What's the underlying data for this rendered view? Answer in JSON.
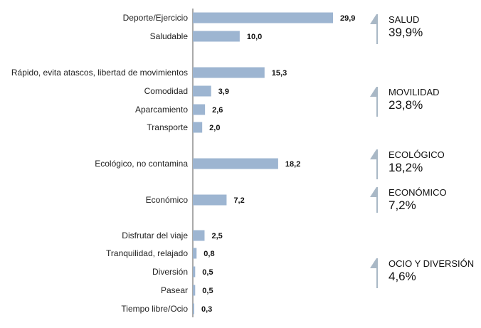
{
  "chart_data": {
    "type": "bar",
    "orientation": "horizontal",
    "categories": [
      "Deporte/Ejercicio",
      "Saludable",
      "Rápido, evita atascos, libertad de movimientos",
      "Comodidad",
      "Aparcamiento",
      "Transporte",
      "Ecológico, no contamina",
      "Económico",
      "Disfrutar del viaje",
      "Tranquilidad, relajado",
      "Diversión",
      "Pasear",
      "Tiempo libre/Ocio"
    ],
    "values": [
      29.9,
      10.0,
      15.3,
      3.9,
      2.6,
      2.0,
      18.2,
      7.2,
      2.5,
      0.8,
      0.5,
      0.5,
      0.3
    ],
    "value_labels": [
      "29,9",
      "10,0",
      "15,3",
      "3,9",
      "2,6",
      "2,0",
      "18,2",
      "7,2",
      "2,5",
      "0,8",
      "0,5",
      "0,5",
      "0,3"
    ],
    "bar_color": "#9db5d1",
    "groups": [
      {
        "name": "SALUD",
        "percent": "39,9%",
        "members": [
          0,
          1
        ]
      },
      {
        "name": "MOVILIDAD",
        "percent": "23,8%",
        "members": [
          2,
          3,
          4,
          5
        ]
      },
      {
        "name": "ECOLÓGICO",
        "percent": "18,2%",
        "members": [
          6
        ]
      },
      {
        "name": "ECONÓMICO",
        "percent": "7,2%",
        "members": [
          7
        ]
      },
      {
        "name": "OCIO Y DIVERSIÓN",
        "percent": "4,6%",
        "members": [
          8,
          9,
          10,
          11,
          12
        ]
      }
    ],
    "group_marker_color": "#a9b8c6",
    "xlim": [
      0,
      30
    ],
    "title": "",
    "xlabel": "",
    "ylabel": "",
    "legend": "none",
    "grid": false
  }
}
